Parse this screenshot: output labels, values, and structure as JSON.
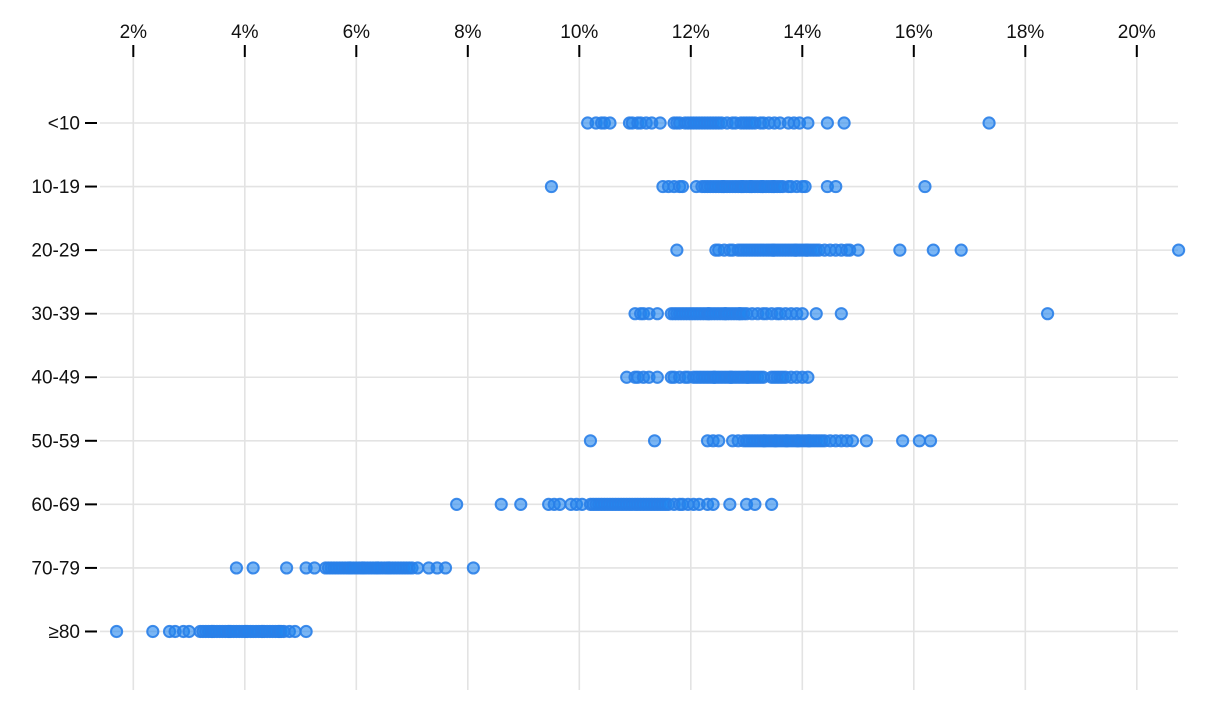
{
  "chart_data": {
    "type": "scatter",
    "variant": "strip-plot",
    "title": "",
    "x_axis": {
      "position": "top",
      "unit": "%",
      "tick_values": [
        2,
        4,
        6,
        8,
        10,
        12,
        14,
        16,
        18,
        20
      ],
      "tick_labels": [
        "2%",
        "4%",
        "6%",
        "8%",
        "10%",
        "12%",
        "14%",
        "16%",
        "18%",
        "20%"
      ],
      "range": [
        1.4,
        20.8
      ],
      "grid": true
    },
    "y_axis": {
      "categories": [
        "<10",
        "10-19",
        "20-29",
        "30-39",
        "40-49",
        "50-59",
        "60-69",
        "70-79",
        "≥80"
      ],
      "grid": true
    },
    "legend": null,
    "series": [
      {
        "category": "<10",
        "values": [
          10.15,
          10.3,
          10.4,
          10.45,
          10.55,
          10.9,
          10.95,
          11.05,
          11.1,
          11.2,
          11.3,
          11.45,
          11.7,
          11.75,
          11.8,
          11.9,
          11.95,
          12.0,
          12.05,
          12.1,
          12.15,
          12.2,
          12.25,
          12.3,
          12.35,
          12.4,
          12.45,
          12.5,
          12.55,
          12.65,
          12.75,
          12.8,
          12.9,
          12.95,
          13.0,
          13.05,
          13.1,
          13.15,
          13.25,
          13.3,
          13.4,
          13.5,
          13.6,
          13.75,
          13.85,
          13.95,
          14.1,
          14.45,
          14.75,
          17.35
        ]
      },
      {
        "category": "10-19",
        "values": [
          9.5,
          11.5,
          11.6,
          11.7,
          11.8,
          11.85,
          12.1,
          12.2,
          12.25,
          12.3,
          12.35,
          12.4,
          12.45,
          12.5,
          12.55,
          12.58,
          12.6,
          12.65,
          12.7,
          12.75,
          12.8,
          12.85,
          12.9,
          12.92,
          12.95,
          13.0,
          13.05,
          13.08,
          13.1,
          13.15,
          13.2,
          13.25,
          13.28,
          13.3,
          13.35,
          13.4,
          13.45,
          13.48,
          13.5,
          13.55,
          13.6,
          13.65,
          13.75,
          13.8,
          13.9,
          14.0,
          14.05,
          14.45,
          14.6,
          16.2
        ]
      },
      {
        "category": "20-29",
        "values": [
          11.75,
          12.45,
          12.5,
          12.6,
          12.7,
          12.75,
          12.85,
          12.9,
          12.95,
          13.0,
          13.05,
          13.1,
          13.15,
          13.2,
          13.25,
          13.3,
          13.35,
          13.4,
          13.45,
          13.48,
          13.5,
          13.55,
          13.6,
          13.65,
          13.7,
          13.75,
          13.8,
          13.85,
          13.88,
          13.9,
          13.95,
          14.0,
          14.05,
          14.08,
          14.1,
          14.15,
          14.2,
          14.25,
          14.3,
          14.4,
          14.5,
          14.6,
          14.7,
          14.8,
          14.85,
          15.0,
          15.75,
          16.35,
          16.85,
          20.75
        ]
      },
      {
        "category": "30-39",
        "values": [
          11.0,
          11.1,
          11.15,
          11.25,
          11.4,
          11.65,
          11.7,
          11.75,
          11.8,
          11.85,
          11.9,
          11.95,
          12.0,
          12.05,
          12.1,
          12.15,
          12.2,
          12.25,
          12.3,
          12.32,
          12.35,
          12.4,
          12.45,
          12.5,
          12.55,
          12.6,
          12.62,
          12.65,
          12.7,
          12.75,
          12.8,
          12.85,
          12.88,
          12.9,
          12.95,
          13.0,
          13.1,
          13.2,
          13.3,
          13.35,
          13.45,
          13.55,
          13.6,
          13.7,
          13.8,
          13.9,
          14.0,
          14.25,
          14.7,
          18.4
        ]
      },
      {
        "category": "40-49",
        "values": [
          10.85,
          11.0,
          11.05,
          11.15,
          11.25,
          11.4,
          11.65,
          11.7,
          11.8,
          11.9,
          11.95,
          12.05,
          12.1,
          12.15,
          12.2,
          12.25,
          12.3,
          12.35,
          12.4,
          12.42,
          12.45,
          12.5,
          12.55,
          12.6,
          12.65,
          12.7,
          12.72,
          12.75,
          12.8,
          12.85,
          12.9,
          12.95,
          13.0,
          13.02,
          13.05,
          13.1,
          13.15,
          13.2,
          13.25,
          13.3,
          13.45,
          13.5,
          13.55,
          13.6,
          13.65,
          13.7,
          13.8,
          13.9,
          14.0,
          14.1
        ]
      },
      {
        "category": "50-59",
        "values": [
          10.2,
          11.35,
          12.3,
          12.4,
          12.5,
          12.75,
          12.85,
          12.95,
          13.0,
          13.05,
          13.1,
          13.15,
          13.2,
          13.25,
          13.3,
          13.32,
          13.35,
          13.4,
          13.45,
          13.5,
          13.52,
          13.55,
          13.6,
          13.65,
          13.7,
          13.72,
          13.75,
          13.8,
          13.85,
          13.9,
          13.92,
          13.95,
          14.0,
          14.05,
          14.1,
          14.12,
          14.15,
          14.2,
          14.25,
          14.3,
          14.35,
          14.4,
          14.5,
          14.6,
          14.7,
          14.8,
          14.9,
          15.15,
          15.8,
          16.1,
          16.3
        ]
      },
      {
        "category": "60-69",
        "values": [
          7.8,
          8.6,
          8.95,
          9.45,
          9.55,
          9.65,
          9.85,
          9.95,
          10.05,
          10.2,
          10.25,
          10.3,
          10.35,
          10.4,
          10.45,
          10.5,
          10.55,
          10.6,
          10.65,
          10.7,
          10.75,
          10.8,
          10.85,
          10.9,
          10.95,
          11.0,
          11.05,
          11.1,
          11.15,
          11.2,
          11.25,
          11.3,
          11.35,
          11.4,
          11.45,
          11.5,
          11.55,
          11.6,
          11.7,
          11.8,
          11.85,
          11.95,
          12.05,
          12.15,
          12.3,
          12.4,
          12.7,
          13.0,
          13.15,
          13.45
        ]
      },
      {
        "category": "70-79",
        "values": [
          3.85,
          4.15,
          4.75,
          5.1,
          5.25,
          5.45,
          5.5,
          5.55,
          5.6,
          5.65,
          5.7,
          5.75,
          5.8,
          5.85,
          5.88,
          5.9,
          5.95,
          6.0,
          6.05,
          6.1,
          6.12,
          6.15,
          6.2,
          6.25,
          6.3,
          6.35,
          6.38,
          6.4,
          6.45,
          6.5,
          6.55,
          6.58,
          6.6,
          6.65,
          6.7,
          6.75,
          6.8,
          6.85,
          6.9,
          6.95,
          7.0,
          7.1,
          7.3,
          7.45,
          7.6,
          8.1
        ]
      },
      {
        "category": "≥80",
        "values": [
          1.7,
          2.35,
          2.65,
          2.75,
          2.9,
          3.0,
          3.2,
          3.25,
          3.3,
          3.35,
          3.4,
          3.42,
          3.45,
          3.5,
          3.55,
          3.6,
          3.65,
          3.7,
          3.72,
          3.75,
          3.8,
          3.85,
          3.9,
          3.95,
          4.0,
          4.02,
          4.05,
          4.1,
          4.15,
          4.2,
          4.25,
          4.3,
          4.32,
          4.35,
          4.4,
          4.45,
          4.5,
          4.55,
          4.6,
          4.62,
          4.65,
          4.7,
          4.8,
          4.9,
          5.1
        ]
      }
    ],
    "colors": {
      "dot_fill": "#2186ee",
      "dot_fill_opacity": 0.6,
      "dot_stroke": "#2a80e8",
      "grid_line": "#e3e3e3",
      "axis_tick": "#000000",
      "label_text": "#111111",
      "background": "#ffffff"
    }
  }
}
